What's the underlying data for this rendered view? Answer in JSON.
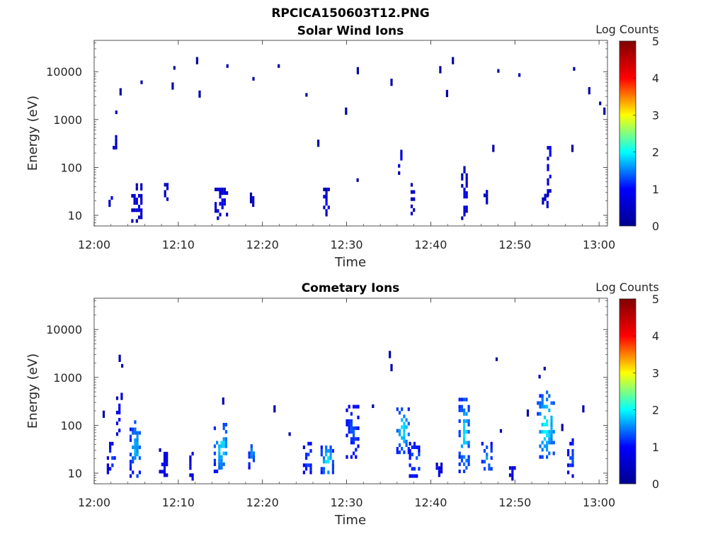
{
  "figure_title": "RPCICA150603T12.PNG",
  "colorbar": {
    "label": "Log Counts",
    "ticks": [
      "0",
      "1",
      "2",
      "3",
      "4",
      "5"
    ],
    "colormap": "jet",
    "stops": [
      "#00008f",
      "#0000ff",
      "#00ffff",
      "#ffff00",
      "#ff0000",
      "#800000"
    ]
  },
  "chart_data": [
    {
      "type": "heatmap",
      "title": "Solar Wind Ions",
      "xlabel": "Time",
      "ylabel": "Energy (eV)",
      "x_ticks": [
        "12:00",
        "12:10",
        "12:20",
        "12:30",
        "12:40",
        "12:50",
        "13:00"
      ],
      "y_ticks": [
        "10",
        "100",
        "1000",
        "10000"
      ],
      "y_scale": "log",
      "xlim_minutes": [
        0,
        61
      ],
      "ylim": [
        6,
        45000
      ],
      "value_range": [
        0,
        5
      ],
      "grid": false,
      "clusters": [
        {
          "t": [
            1.7,
            2.2
          ],
          "e": [
            15,
            30
          ],
          "v": 0.35
        },
        {
          "t": [
            4.4,
            5.7
          ],
          "e": [
            7,
            40
          ],
          "v": 0.3
        },
        {
          "t": [
            2.2,
            2.5
          ],
          "e": [
            200,
            550
          ],
          "v": 0.3
        },
        {
          "t": [
            8.3,
            8.6
          ],
          "e": [
            20,
            40
          ],
          "v": 0.25
        },
        {
          "t": [
            14.3,
            15.8
          ],
          "e": [
            8,
            40
          ],
          "v": 0.3
        },
        {
          "t": [
            18.5,
            18.8
          ],
          "e": [
            15,
            40
          ],
          "v": 0.35
        },
        {
          "t": [
            27.2,
            28.2
          ],
          "e": [
            8,
            35
          ],
          "v": 0.35
        },
        {
          "t": [
            30.9,
            31.2
          ],
          "e": [
            50,
            120
          ],
          "v": 0.3
        },
        {
          "t": [
            36.1,
            36.6
          ],
          "e": [
            70,
            220
          ],
          "v": 0.3
        },
        {
          "t": [
            37.6,
            38.1
          ],
          "e": [
            10,
            40
          ],
          "v": 0.3
        },
        {
          "t": [
            43.6,
            44.4
          ],
          "e": [
            8,
            90
          ],
          "v": 0.3
        },
        {
          "t": [
            46.0,
            46.8
          ],
          "e": [
            12,
            40
          ],
          "v": 0.3
        },
        {
          "t": [
            53.8,
            54.3
          ],
          "e": [
            25,
            350
          ],
          "v": 0.4
        },
        {
          "t": [
            53.2,
            53.8
          ],
          "e": [
            10,
            30
          ],
          "v": 0.3
        }
      ],
      "isolated_points": [
        {
          "t": 2.5,
          "e": 1300,
          "v": 0.2
        },
        {
          "t": 5.5,
          "e": 5500,
          "v": 0.2
        },
        {
          "t": 9.4,
          "e": 11000,
          "v": 0.2
        },
        {
          "t": 12.1,
          "e": 17000,
          "v": 0.2
        },
        {
          "t": 15.7,
          "e": 12000,
          "v": 0.2
        },
        {
          "t": 18.8,
          "e": 6500,
          "v": 0.2
        },
        {
          "t": 21.8,
          "e": 12000,
          "v": 0.2
        },
        {
          "t": 25.1,
          "e": 3000,
          "v": 0.2
        },
        {
          "t": 31.2,
          "e": 10500,
          "v": 0.2
        },
        {
          "t": 35.2,
          "e": 6000,
          "v": 0.2
        },
        {
          "t": 41.0,
          "e": 11000,
          "v": 0.2
        },
        {
          "t": 42.5,
          "e": 17000,
          "v": 0.2
        },
        {
          "t": 47.9,
          "e": 9500,
          "v": 0.2
        },
        {
          "t": 50.4,
          "e": 7800,
          "v": 0.2
        },
        {
          "t": 56.9,
          "e": 10500,
          "v": 0.2
        },
        {
          "t": 60.5,
          "e": 1500,
          "v": 0.2
        },
        {
          "t": 3.0,
          "e": 3800,
          "v": 0.2
        },
        {
          "t": 9.2,
          "e": 5000,
          "v": 0.2
        },
        {
          "t": 12.4,
          "e": 3400,
          "v": 0.2
        },
        {
          "t": 26.5,
          "e": 320,
          "v": 0.2
        },
        {
          "t": 29.8,
          "e": 1500,
          "v": 0.2
        },
        {
          "t": 41.8,
          "e": 3500,
          "v": 0.2
        },
        {
          "t": 47.3,
          "e": 250,
          "v": 0.2
        },
        {
          "t": 56.7,
          "e": 250,
          "v": 0.2
        },
        {
          "t": 60.0,
          "e": 2000,
          "v": 0.2
        },
        {
          "t": 58.7,
          "e": 4000,
          "v": 0.2
        }
      ]
    },
    {
      "type": "heatmap",
      "title": "Cometary Ions",
      "xlabel": "Time",
      "ylabel": "Energy (eV)",
      "x_ticks": [
        "12:00",
        "12:10",
        "12:20",
        "12:30",
        "12:40",
        "12:50",
        "13:00"
      ],
      "y_ticks": [
        "10",
        "100",
        "1000",
        "10000"
      ],
      "y_scale": "log",
      "xlim_minutes": [
        0,
        61
      ],
      "ylim": [
        6,
        45000
      ],
      "value_range": [
        0,
        5
      ],
      "grid": false,
      "clusters": [
        {
          "t": [
            1.5,
            2.5
          ],
          "e": [
            8,
            40
          ],
          "v": 0.6
        },
        {
          "t": [
            2.6,
            3.2
          ],
          "e": [
            60,
            450
          ],
          "v": 0.45
        },
        {
          "t": [
            4.2,
            5.5
          ],
          "e": [
            8,
            120
          ],
          "v": 1.1
        },
        {
          "t": [
            7.7,
            8.6
          ],
          "e": [
            7,
            30
          ],
          "v": 0.4
        },
        {
          "t": [
            11.3,
            11.8
          ],
          "e": [
            7,
            25
          ],
          "v": 0.55
        },
        {
          "t": [
            14.2,
            15.8
          ],
          "e": [
            10,
            110
          ],
          "v": 1.3
        },
        {
          "t": [
            18.3,
            19.0
          ],
          "e": [
            12,
            40
          ],
          "v": 1.0
        },
        {
          "t": [
            24.8,
            25.8
          ],
          "e": [
            8,
            40
          ],
          "v": 0.7
        },
        {
          "t": [
            26.9,
            28.3
          ],
          "e": [
            8,
            35
          ],
          "v": 1.3
        },
        {
          "t": [
            29.9,
            31.4
          ],
          "e": [
            20,
            300
          ],
          "v": 0.7
        },
        {
          "t": [
            35.9,
            37.4
          ],
          "e": [
            25,
            220
          ],
          "v": 1.3
        },
        {
          "t": [
            37.4,
            38.7
          ],
          "e": [
            8,
            40
          ],
          "v": 0.8
        },
        {
          "t": [
            40.6,
            41.2
          ],
          "e": [
            7,
            15
          ],
          "v": 0.4
        },
        {
          "t": [
            43.3,
            44.5
          ],
          "e": [
            10,
            350
          ],
          "v": 1.3
        },
        {
          "t": [
            46.0,
            47.2
          ],
          "e": [
            8,
            40
          ],
          "v": 1.0
        },
        {
          "t": [
            52.6,
            54.6
          ],
          "e": [
            20,
            450
          ],
          "v": 1.4
        },
        {
          "t": [
            56.2,
            57.0
          ],
          "e": [
            8,
            45
          ],
          "v": 0.7
        },
        {
          "t": [
            49.3,
            50.0
          ],
          "e": [
            7,
            15
          ],
          "v": 0.35
        }
      ],
      "isolated_points": [
        {
          "t": 2.9,
          "e": 2500,
          "v": 0.2
        },
        {
          "t": 3.2,
          "e": 1600,
          "v": 0.2
        },
        {
          "t": 35.0,
          "e": 3000,
          "v": 0.2
        },
        {
          "t": 35.2,
          "e": 1600,
          "v": 0.2
        },
        {
          "t": 47.7,
          "e": 2200,
          "v": 0.2
        },
        {
          "t": 53.4,
          "e": 1400,
          "v": 0.2
        },
        {
          "t": 52.8,
          "e": 950,
          "v": 0.2
        },
        {
          "t": 1.0,
          "e": 170,
          "v": 0.2
        },
        {
          "t": 15.2,
          "e": 320,
          "v": 0.2
        },
        {
          "t": 21.3,
          "e": 220,
          "v": 0.2
        },
        {
          "t": 33.0,
          "e": 230,
          "v": 0.2
        },
        {
          "t": 51.4,
          "e": 180,
          "v": 0.2
        },
        {
          "t": 58.0,
          "e": 220,
          "v": 0.2
        },
        {
          "t": 23.1,
          "e": 60,
          "v": 0.2
        },
        {
          "t": 48.2,
          "e": 70,
          "v": 0.2
        },
        {
          "t": 55.5,
          "e": 90,
          "v": 0.2
        }
      ]
    }
  ]
}
